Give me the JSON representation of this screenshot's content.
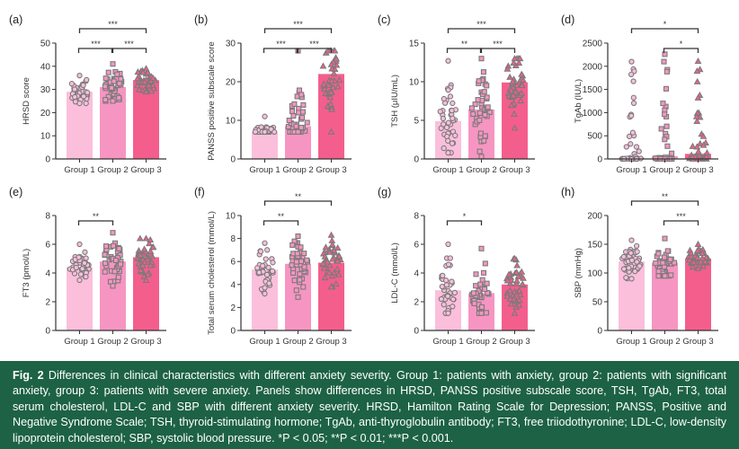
{
  "figure": {
    "group_labels": [
      "Group 1",
      "Group 2",
      "Group 3"
    ],
    "group_colors": [
      "#fbbfdc",
      "#f795c2",
      "#f45e8d"
    ],
    "marker_shapes": [
      "circle",
      "square",
      "triangle"
    ],
    "marker_stroke": "#7a7a7a"
  },
  "chart_data": [
    {
      "panel": "(a)",
      "type": "bar",
      "ylabel": "HRSD score",
      "categories": [
        "Group 1",
        "Group 2",
        "Group 3"
      ],
      "values": [
        29,
        31,
        34
      ],
      "ylim": [
        0,
        50
      ],
      "yticks": [
        0,
        10,
        20,
        30,
        40,
        50
      ],
      "point_range": [
        [
          24,
          36
        ],
        [
          25,
          41
        ],
        [
          29,
          39
        ]
      ],
      "significance": [
        {
          "from": 0,
          "to": 1,
          "label": "***",
          "level": 0
        },
        {
          "from": 1,
          "to": 2,
          "label": "***",
          "level": 0
        },
        {
          "from": 0,
          "to": 2,
          "label": "***",
          "level": 1
        }
      ]
    },
    {
      "panel": "(b)",
      "type": "bar",
      "ylabel": "PANSS positive subscale score",
      "categories": [
        "Group 1",
        "Group 2",
        "Group 3"
      ],
      "values": [
        7,
        8.5,
        22
      ],
      "ylim": [
        0,
        30
      ],
      "yticks": [
        0,
        10,
        20,
        30
      ],
      "point_range": [
        [
          7,
          11
        ],
        [
          7,
          28
        ],
        [
          7,
          28
        ]
      ],
      "significance": [
        {
          "from": 0,
          "to": 1,
          "label": "***",
          "level": 0
        },
        {
          "from": 1,
          "to": 2,
          "label": "***",
          "level": 0
        },
        {
          "from": 0,
          "to": 2,
          "label": "***",
          "level": 1
        }
      ]
    },
    {
      "panel": "(c)",
      "type": "bar",
      "ylabel": "TSH (μIU/mL)",
      "categories": [
        "Group 1",
        "Group 2",
        "Group 3"
      ],
      "values": [
        4.9,
        6.4,
        9.9
      ],
      "ylim": [
        0,
        15
      ],
      "yticks": [
        0,
        5,
        10,
        15
      ],
      "point_range": [
        [
          0.8,
          12.7
        ],
        [
          0.3,
          13
        ],
        [
          4,
          13
        ]
      ],
      "significance": [
        {
          "from": 0,
          "to": 1,
          "label": "**",
          "level": 0
        },
        {
          "from": 1,
          "to": 2,
          "label": "***",
          "level": 0
        },
        {
          "from": 0,
          "to": 2,
          "label": "***",
          "level": 1
        }
      ]
    },
    {
      "panel": "(d)",
      "type": "bar",
      "ylabel": "TgAb (IU/L)",
      "categories": [
        "Group 1",
        "Group 2",
        "Group 3"
      ],
      "values": [
        30,
        60,
        110
      ],
      "ylim": [
        0,
        2500
      ],
      "yticks": [
        0,
        500,
        1000,
        1500,
        2000,
        2500
      ],
      "point_range": [
        [
          0,
          2100
        ],
        [
          0,
          2260
        ],
        [
          0,
          2110
        ]
      ],
      "significance": [
        {
          "from": 1,
          "to": 2,
          "label": "*",
          "level": 0
        },
        {
          "from": 0,
          "to": 2,
          "label": "*",
          "level": 1
        }
      ]
    },
    {
      "panel": "(e)",
      "type": "bar",
      "ylabel": "FT3 (pmol/L)",
      "categories": [
        "Group 1",
        "Group 2",
        "Group 3"
      ],
      "values": [
        4.4,
        4.8,
        5.1
      ],
      "ylim": [
        0,
        8
      ],
      "yticks": [
        0,
        2,
        4,
        6,
        8
      ],
      "point_range": [
        [
          3.5,
          6
        ],
        [
          3.1,
          6.8
        ],
        [
          3.5,
          6.4
        ]
      ],
      "significance": [
        {
          "from": 0,
          "to": 1,
          "label": "**",
          "level": 0
        }
      ]
    },
    {
      "panel": "(f)",
      "type": "bar",
      "ylabel": "Total serum cholesterol (mmol/L)",
      "categories": [
        "Group 1",
        "Group 2",
        "Group 3"
      ],
      "values": [
        5.3,
        5.8,
        5.9
      ],
      "ylim": [
        0,
        10
      ],
      "yticks": [
        0,
        2,
        4,
        6,
        8,
        10
      ],
      "point_range": [
        [
          3.2,
          7.6
        ],
        [
          2.9,
          8.2
        ],
        [
          3.8,
          8.3
        ]
      ],
      "significance": [
        {
          "from": 0,
          "to": 1,
          "label": "**",
          "level": 0
        },
        {
          "from": 0,
          "to": 2,
          "label": "**",
          "level": 1
        }
      ]
    },
    {
      "panel": "(g)",
      "type": "bar",
      "ylabel": "LDL-C (mmol/L)",
      "categories": [
        "Group 1",
        "Group 2",
        "Group 3"
      ],
      "values": [
        2.8,
        2.6,
        3.2
      ],
      "ylim": [
        0,
        8
      ],
      "yticks": [
        0,
        2,
        4,
        6,
        8
      ],
      "point_range": [
        [
          1.2,
          6
        ],
        [
          1.2,
          5.7
        ],
        [
          1.2,
          5
        ]
      ],
      "significance": [
        {
          "from": 0,
          "to": 1,
          "label": "*",
          "level": 0
        }
      ]
    },
    {
      "panel": "(h)",
      "type": "bar",
      "ylabel": "SBP (mmHg)",
      "categories": [
        "Group 1",
        "Group 2",
        "Group 3"
      ],
      "values": [
        120,
        118,
        125
      ],
      "ylim": [
        0,
        200
      ],
      "yticks": [
        0,
        50,
        100,
        150,
        200
      ],
      "point_range": [
        [
          90,
          157
        ],
        [
          95,
          160
        ],
        [
          108,
          150
        ]
      ],
      "significance": [
        {
          "from": 1,
          "to": 2,
          "label": "***",
          "level": 0
        },
        {
          "from": 0,
          "to": 2,
          "label": "**",
          "level": 1
        }
      ]
    }
  ],
  "caption": {
    "label": "Fig. 2",
    "text": " Differences in clinical characteristics with different anxiety severity. Group 1: patients with anxiety, group 2: patients with significant anxiety, group 3: patients with severe anxiety. Panels show differences in HRSD, PANSS positive subscale score, TSH, TgAb, FT3, total serum cholesterol, LDL-C and SBP with different anxiety severity. HRSD, Hamilton Rating Scale for Depression; PANSS, Positive and Negative Syndrome Scale; TSH, thyroid-stimulating hormone; TgAb, anti-thyroglobulin antibody; FT3, free triiodothyronine; LDL-C, low-density lipoprotein cholesterol; SBP, systolic blood pressure. ",
    "p_values": [
      "*P < 0.05;",
      "**P < 0.01;",
      "***P < 0.001."
    ]
  }
}
